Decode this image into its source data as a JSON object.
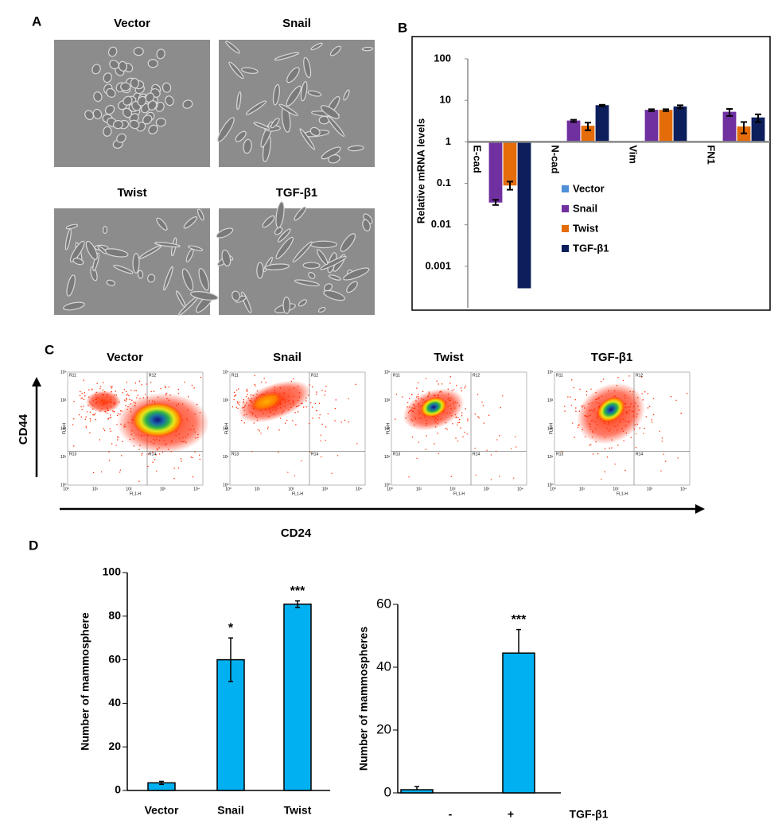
{
  "panel_letters": [
    "A",
    "B",
    "C",
    "D"
  ],
  "micrographs": {
    "labels": [
      "Vector",
      "Snail",
      "Twist",
      "TGF-β1"
    ]
  },
  "flow": {
    "titles": [
      "Vector",
      "Snail",
      "Twist",
      "TGF-β1"
    ],
    "y_label": "CD44",
    "x_label": "CD24",
    "quadrant_labels": [
      "R11",
      "R12",
      "R13",
      "R14"
    ],
    "plot_x_label": "FL1-H",
    "plot_y_label": "FL4-H",
    "axis_ticks": [
      "10⁰",
      "10¹",
      "10²",
      "10³",
      "10⁴"
    ]
  },
  "chart_data": [
    {
      "type": "bar",
      "log_scale": true,
      "ylabel": "Relative mRNA levels",
      "categories": [
        "E-cad",
        "N-cad",
        "Vim",
        "FN1"
      ],
      "series": [
        {
          "name": "Vector",
          "color": "#4f90d6",
          "values": [
            1,
            1,
            1,
            0.98
          ],
          "errors": [
            null,
            null,
            null,
            null
          ]
        },
        {
          "name": "Snail",
          "color": "#7030a0",
          "values": [
            0.035,
            3.2,
            5.8,
            5.2
          ],
          "errors": [
            0.005,
            0.2,
            0.3,
            1
          ]
        },
        {
          "name": "Twist",
          "color": "#e46c0a",
          "values": [
            0.09,
            2.4,
            5.8,
            2.3
          ],
          "errors": [
            0.02,
            0.5,
            0.3,
            0.7
          ]
        },
        {
          "name": "TGF-β1",
          "color": "#0d1e5c",
          "values": [
            0.0003,
            7.5,
            7,
            3.8
          ],
          "errors": [
            null,
            0.3,
            0.6,
            0.8
          ]
        }
      ],
      "ylim": [
        0.0001,
        100
      ],
      "yticks": [
        100,
        10,
        1,
        0.1,
        0.01,
        0.001
      ],
      "legend": "center"
    },
    {
      "type": "bar",
      "ylabel": "Number of mammosphere",
      "categories": [
        "Vector",
        "Snail",
        "Twist"
      ],
      "values": [
        3.5,
        60,
        85.5
      ],
      "errors": [
        0.7,
        10,
        1.5
      ],
      "error_bars": "both",
      "annotations": [
        null,
        "*",
        "***"
      ],
      "color": "#00b0f0",
      "ylim": [
        0,
        100
      ],
      "yticks": [
        0,
        20,
        40,
        60,
        80,
        100
      ]
    },
    {
      "type": "bar",
      "ylabel": "Number of mammospheres",
      "xlabel": "TGF-β1",
      "categories": [
        "-",
        "+"
      ],
      "values": [
        1,
        44.5
      ],
      "errors": [
        1,
        7.5
      ],
      "error_bars": "up",
      "annotations": [
        null,
        "***"
      ],
      "color": "#00b0f0",
      "ylim": [
        0,
        60
      ],
      "yticks": [
        0,
        20,
        40,
        60
      ]
    }
  ]
}
